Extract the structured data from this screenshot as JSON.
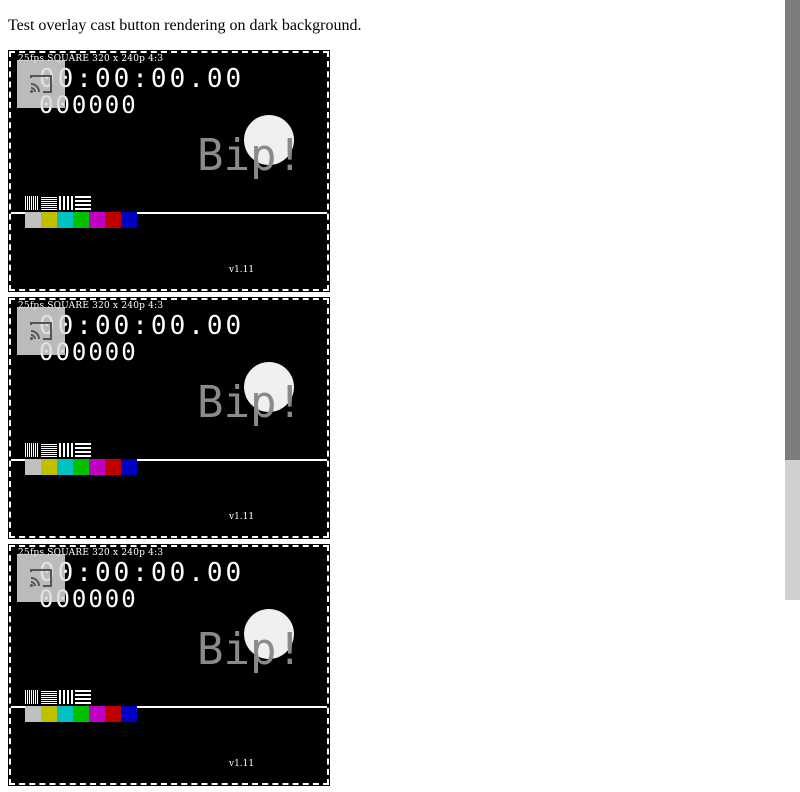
{
  "page": {
    "heading": "Test overlay cast button rendering on dark background."
  },
  "video": {
    "fps_label": "25fps SQUARE 320 x 240p 4:3",
    "timecode": "00:00:00.00",
    "frame_count": "000000",
    "bip_text": "Bip!",
    "version": "v1.11",
    "color_bars": [
      "#c0c0c0",
      "#c0c000",
      "#00c0c0",
      "#00c000",
      "#c000c0",
      "#c00000",
      "#0000c0"
    ],
    "cast_icon": "cast-icon"
  },
  "videos": [
    {
      "id": "video-1"
    },
    {
      "id": "video-2"
    },
    {
      "id": "video-3"
    }
  ],
  "scrollbar": {
    "position_fraction": 0.0
  }
}
